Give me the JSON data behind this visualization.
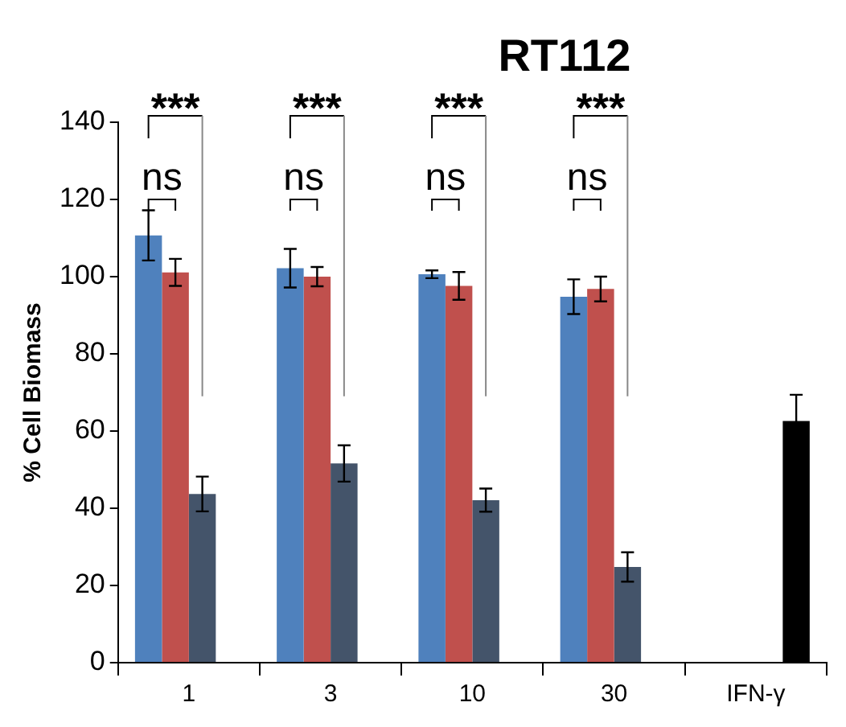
{
  "chart_data": {
    "type": "bar",
    "title": "RT112",
    "ylabel": "% Cell Biomass",
    "categories": [
      "1",
      "3",
      "10",
      "30",
      "IFN-γ"
    ],
    "series": [
      {
        "color": "#4f81bd",
        "values": [
          110.7,
          102.2,
          100.6,
          94.8,
          null
        ],
        "errors": [
          6.5,
          5,
          1,
          4.5,
          null
        ]
      },
      {
        "color": "#c0504d",
        "values": [
          101.1,
          100,
          97.6,
          96.8,
          null
        ],
        "errors": [
          3.5,
          2.5,
          3.6,
          3.2,
          null
        ]
      },
      {
        "color": "#44546a",
        "values": [
          43.7,
          51.6,
          42.1,
          24.8,
          null
        ],
        "errors": [
          4.5,
          4.7,
          3,
          3.8,
          null
        ]
      },
      {
        "color": "#000000",
        "values": [
          null,
          null,
          null,
          null,
          62.6
        ],
        "errors": [
          null,
          null,
          null,
          null,
          6.8
        ]
      }
    ],
    "ylim": [
      0,
      140
    ],
    "yticks": [
      0,
      20,
      40,
      60,
      80,
      100,
      120,
      140
    ],
    "grid": false,
    "legend": false,
    "annotations": [
      "***",
      "***",
      "***",
      "***",
      "ns",
      "ns",
      "ns",
      "ns"
    ]
  }
}
